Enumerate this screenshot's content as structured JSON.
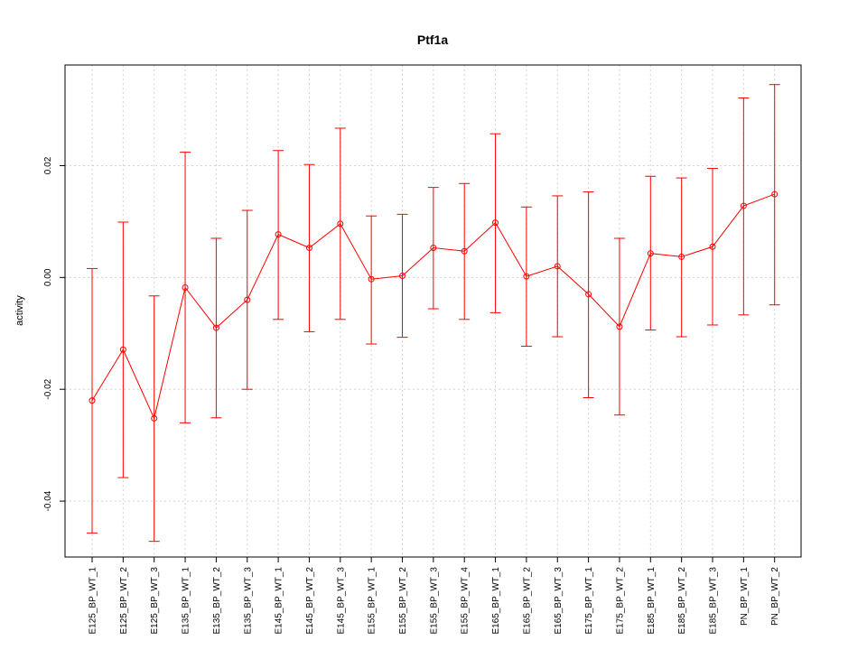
{
  "chart_data": {
    "type": "line",
    "title": "Ptf1a",
    "xlabel": "",
    "ylabel": "activity",
    "ylim": [
      -0.05,
      0.038
    ],
    "yticks": [
      -0.04,
      -0.02,
      0.0,
      0.02
    ],
    "ytick_labels": [
      "-0.04",
      "-0.02",
      "0.00",
      "0.02"
    ],
    "grid": true,
    "color": "#ff0000",
    "categories": [
      "E125_BP_WT_1",
      "E125_BP_WT_2",
      "E125_BP_WT_3",
      "E135_BP_WT_1",
      "E135_BP_WT_2",
      "E135_BP_WT_3",
      "E145_BP_WT_1",
      "E145_BP_WT_2",
      "E145_BP_WT_3",
      "E155_BP_WT_1",
      "E155_BP_WT_2",
      "E155_BP_WT_3",
      "E155_BP_WT_4",
      "E165_BP_WT_1",
      "E165_BP_WT_2",
      "E165_BP_WT_3",
      "E175_BP_WT_1",
      "E175_BP_WT_2",
      "E185_BP_WT_1",
      "E185_BP_WT_2",
      "E185_BP_WT_3",
      "PN_BP_WT_1",
      "PN_BP_WT_2"
    ],
    "values": [
      -0.022,
      -0.0129,
      -0.0252,
      -0.0018,
      -0.009,
      -0.004,
      0.0077,
      0.0053,
      0.0096,
      -0.0003,
      0.0003,
      0.0053,
      0.0047,
      0.0098,
      0.0002,
      0.002,
      -0.003,
      -0.0088,
      0.0043,
      0.0037,
      0.0055,
      0.0128,
      0.0149
    ],
    "upper": [
      0.0016,
      0.0099,
      -0.0033,
      0.0224,
      0.007,
      0.012,
      0.0227,
      0.0202,
      0.0267,
      0.011,
      0.0113,
      0.0161,
      0.0168,
      0.0257,
      0.0126,
      0.0146,
      0.0153,
      0.007,
      0.0181,
      0.0178,
      0.0195,
      0.0321,
      0.0345
    ],
    "lower": [
      -0.0457,
      -0.0358,
      -0.0472,
      -0.026,
      -0.0251,
      -0.02,
      -0.0075,
      -0.0097,
      -0.0075,
      -0.0119,
      -0.0107,
      -0.0056,
      -0.0075,
      -0.0063,
      -0.0123,
      -0.0106,
      -0.0215,
      -0.0246,
      -0.0094,
      -0.0106,
      -0.0085,
      -0.0067,
      -0.0049
    ]
  }
}
